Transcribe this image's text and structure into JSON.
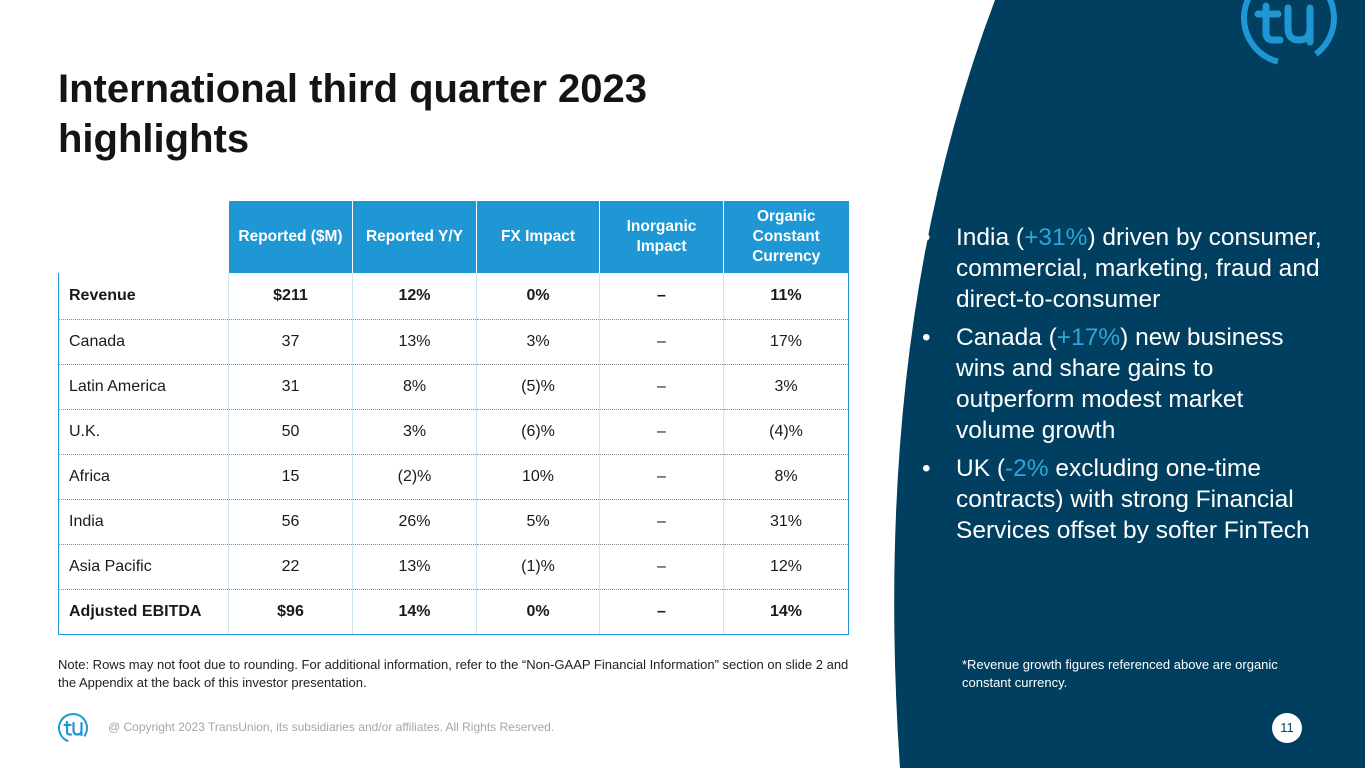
{
  "slide": {
    "title": "International third quarter 2023 highlights",
    "page_number": "11"
  },
  "table": {
    "headers": [
      "Reported ($M)",
      "Reported Y/Y",
      "FX Impact",
      "Inorganic Impact",
      "Organic Constant Currency"
    ],
    "rows": [
      {
        "label": "Revenue",
        "reported": "$211",
        "yy": "12%",
        "fx": "0%",
        "inorganic": "–",
        "organic": "11%"
      },
      {
        "label": "Canada",
        "reported": "37",
        "yy": "13%",
        "fx": "3%",
        "inorganic": "–",
        "organic": "17%"
      },
      {
        "label": "Latin America",
        "reported": "31",
        "yy": "8%",
        "fx": "(5)%",
        "inorganic": "–",
        "organic": "3%"
      },
      {
        "label": "U.K.",
        "reported": "50",
        "yy": "3%",
        "fx": "(6)%",
        "inorganic": "–",
        "organic": "(4)%"
      },
      {
        "label": "Africa",
        "reported": "15",
        "yy": "(2)%",
        "fx": "10%",
        "inorganic": "–",
        "organic": "8%"
      },
      {
        "label": "India",
        "reported": "56",
        "yy": "26%",
        "fx": "5%",
        "inorganic": "–",
        "organic": "31%"
      },
      {
        "label": "Asia Pacific",
        "reported": "22",
        "yy": "13%",
        "fx": "(1)%",
        "inorganic": "–",
        "organic": "12%"
      },
      {
        "label": "Adjusted EBITDA",
        "reported": "$96",
        "yy": "14%",
        "fx": "0%",
        "inorganic": "–",
        "organic": "14%"
      }
    ]
  },
  "note": "Note: Rows may not foot due to rounding. For additional information, refer to the “Non-GAAP Financial Information” section on slide 2 and the Appendix at the back of this investor presentation.",
  "bullets": [
    {
      "pre": "India (",
      "highlight": "+31%",
      "post": ") driven by consumer, commercial, marketing, fraud and direct-to-consumer"
    },
    {
      "pre": "Canada (",
      "highlight": "+17%",
      "post": ") new business wins and share gains to outperform modest market volume growth"
    },
    {
      "pre": "UK (",
      "highlight": "-2%",
      "post": " excluding one-time contracts) with strong Financial Services offset by softer FinTech"
    }
  ],
  "bullet_symbol": "•",
  "footnote": "*Revenue growth figures referenced above are organic constant currency.",
  "footer": {
    "copyright": "@ Copyright 2023 TransUnion, its subsidiaries and/or affiliates.  All Rights Reserved."
  },
  "logo": {
    "icon": "transunion-tu-logo-icon"
  },
  "colors": {
    "navy": "#003f5f",
    "accent": "#1f97d4",
    "highlight": "#2ea6dc"
  }
}
